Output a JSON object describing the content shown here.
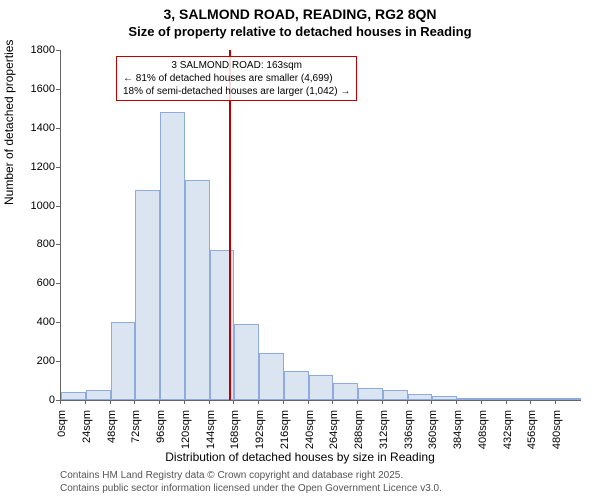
{
  "title_line1": "3, SALMOND ROAD, READING, RG2 8QN",
  "title_line2": "Size of property relative to detached houses in Reading",
  "y_axis_label": "Number of detached properties",
  "x_axis_label": "Distribution of detached houses by size in Reading",
  "footer_line1": "Contains HM Land Registry data © Crown copyright and database right 2025.",
  "footer_line2": "Contains public sector information licensed under the Open Government Licence v3.0.",
  "chart": {
    "type": "histogram",
    "background_color": "#ffffff",
    "bar_fill": "#dbe5f1",
    "bar_border": "#8faadc",
    "ref_line_color": "#c00000",
    "callout_border": "#c00000",
    "text_color": "#333333",
    "axis_color": "#666666",
    "ylim": [
      0,
      1800
    ],
    "ytick_step": 200,
    "yticks": [
      0,
      200,
      400,
      600,
      800,
      1000,
      1200,
      1400,
      1600,
      1800
    ],
    "xlim_sqm": [
      0,
      504
    ],
    "xtick_step_sqm": 24,
    "xticks": [
      "0sqm",
      "24sqm",
      "48sqm",
      "72sqm",
      "96sqm",
      "120sqm",
      "144sqm",
      "168sqm",
      "192sqm",
      "216sqm",
      "240sqm",
      "264sqm",
      "288sqm",
      "312sqm",
      "336sqm",
      "360sqm",
      "384sqm",
      "408sqm",
      "432sqm",
      "456sqm",
      "480sqm"
    ],
    "bin_width_sqm": 24,
    "bars": [
      40,
      50,
      400,
      1080,
      1480,
      1130,
      770,
      390,
      240,
      150,
      130,
      90,
      60,
      50,
      30,
      20,
      10,
      10,
      5,
      5,
      5
    ],
    "ref_value_sqm": 163,
    "callout": {
      "line1": "3 SALMOND ROAD: 163sqm",
      "line2": "← 81% of detached houses are smaller (4,699)",
      "line3": "18% of semi-detached houses are larger (1,042) →"
    },
    "title_fontsize": 14,
    "subtitle_fontsize": 13,
    "axis_label_fontsize": 12,
    "tick_fontsize": 11,
    "callout_fontsize": 10,
    "footer_fontsize": 10
  }
}
